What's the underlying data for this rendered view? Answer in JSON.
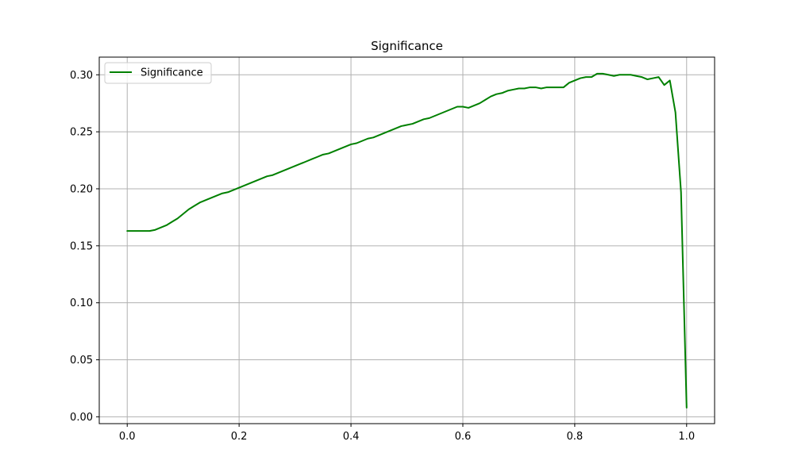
{
  "chart_data": {
    "type": "line",
    "title": "Significance",
    "xlabel": "",
    "ylabel": "",
    "xlim": [
      -0.05,
      1.05
    ],
    "ylim": [
      -0.006,
      0.3155
    ],
    "xticks": [
      0.0,
      0.2,
      0.4,
      0.6,
      0.8,
      1.0
    ],
    "xtick_labels": [
      "0.0",
      "0.2",
      "0.4",
      "0.6",
      "0.8",
      "1.0"
    ],
    "yticks": [
      0.0,
      0.05,
      0.1,
      0.15,
      0.2,
      0.25,
      0.3
    ],
    "ytick_labels": [
      "0.00",
      "0.05",
      "0.10",
      "0.15",
      "0.20",
      "0.25",
      "0.30"
    ],
    "grid": true,
    "legend": {
      "placement": "upper-left",
      "entries": [
        "Significance"
      ]
    },
    "series": [
      {
        "name": "Significance",
        "color": "#008000",
        "x": [
          0.0,
          0.01,
          0.02,
          0.03,
          0.04,
          0.05,
          0.06,
          0.07,
          0.08,
          0.09,
          0.1,
          0.11,
          0.12,
          0.13,
          0.14,
          0.15,
          0.16,
          0.17,
          0.18,
          0.19,
          0.2,
          0.21,
          0.22,
          0.23,
          0.24,
          0.25,
          0.26,
          0.27,
          0.28,
          0.29,
          0.3,
          0.31,
          0.32,
          0.33,
          0.34,
          0.35,
          0.36,
          0.37,
          0.38,
          0.39,
          0.4,
          0.41,
          0.42,
          0.43,
          0.44,
          0.45,
          0.46,
          0.47,
          0.48,
          0.49,
          0.5,
          0.51,
          0.52,
          0.53,
          0.54,
          0.55,
          0.56,
          0.57,
          0.58,
          0.59,
          0.6,
          0.61,
          0.62,
          0.63,
          0.64,
          0.65,
          0.66,
          0.67,
          0.68,
          0.69,
          0.7,
          0.71,
          0.72,
          0.73,
          0.74,
          0.75,
          0.76,
          0.77,
          0.78,
          0.79,
          0.8,
          0.81,
          0.82,
          0.83,
          0.84,
          0.85,
          0.86,
          0.87,
          0.88,
          0.89,
          0.9,
          0.91,
          0.92,
          0.93,
          0.94,
          0.95,
          0.96,
          0.97,
          0.98,
          0.99,
          1.0
        ],
        "y": [
          0.163,
          0.163,
          0.163,
          0.163,
          0.163,
          0.164,
          0.166,
          0.168,
          0.171,
          0.174,
          0.178,
          0.182,
          0.185,
          0.188,
          0.19,
          0.192,
          0.194,
          0.196,
          0.197,
          0.199,
          0.201,
          0.203,
          0.205,
          0.207,
          0.209,
          0.211,
          0.212,
          0.214,
          0.216,
          0.218,
          0.22,
          0.222,
          0.224,
          0.226,
          0.228,
          0.23,
          0.231,
          0.233,
          0.235,
          0.237,
          0.239,
          0.24,
          0.242,
          0.244,
          0.245,
          0.247,
          0.249,
          0.251,
          0.253,
          0.255,
          0.256,
          0.257,
          0.259,
          0.261,
          0.262,
          0.264,
          0.266,
          0.268,
          0.27,
          0.272,
          0.272,
          0.271,
          0.273,
          0.275,
          0.278,
          0.281,
          0.283,
          0.284,
          0.286,
          0.287,
          0.288,
          0.288,
          0.289,
          0.289,
          0.288,
          0.289,
          0.289,
          0.289,
          0.289,
          0.293,
          0.295,
          0.297,
          0.298,
          0.298,
          0.301,
          0.301,
          0.3,
          0.299,
          0.3,
          0.3,
          0.3,
          0.299,
          0.298,
          0.296,
          0.297,
          0.298,
          0.291,
          0.295,
          0.267,
          0.197,
          0.008
        ]
      }
    ]
  }
}
